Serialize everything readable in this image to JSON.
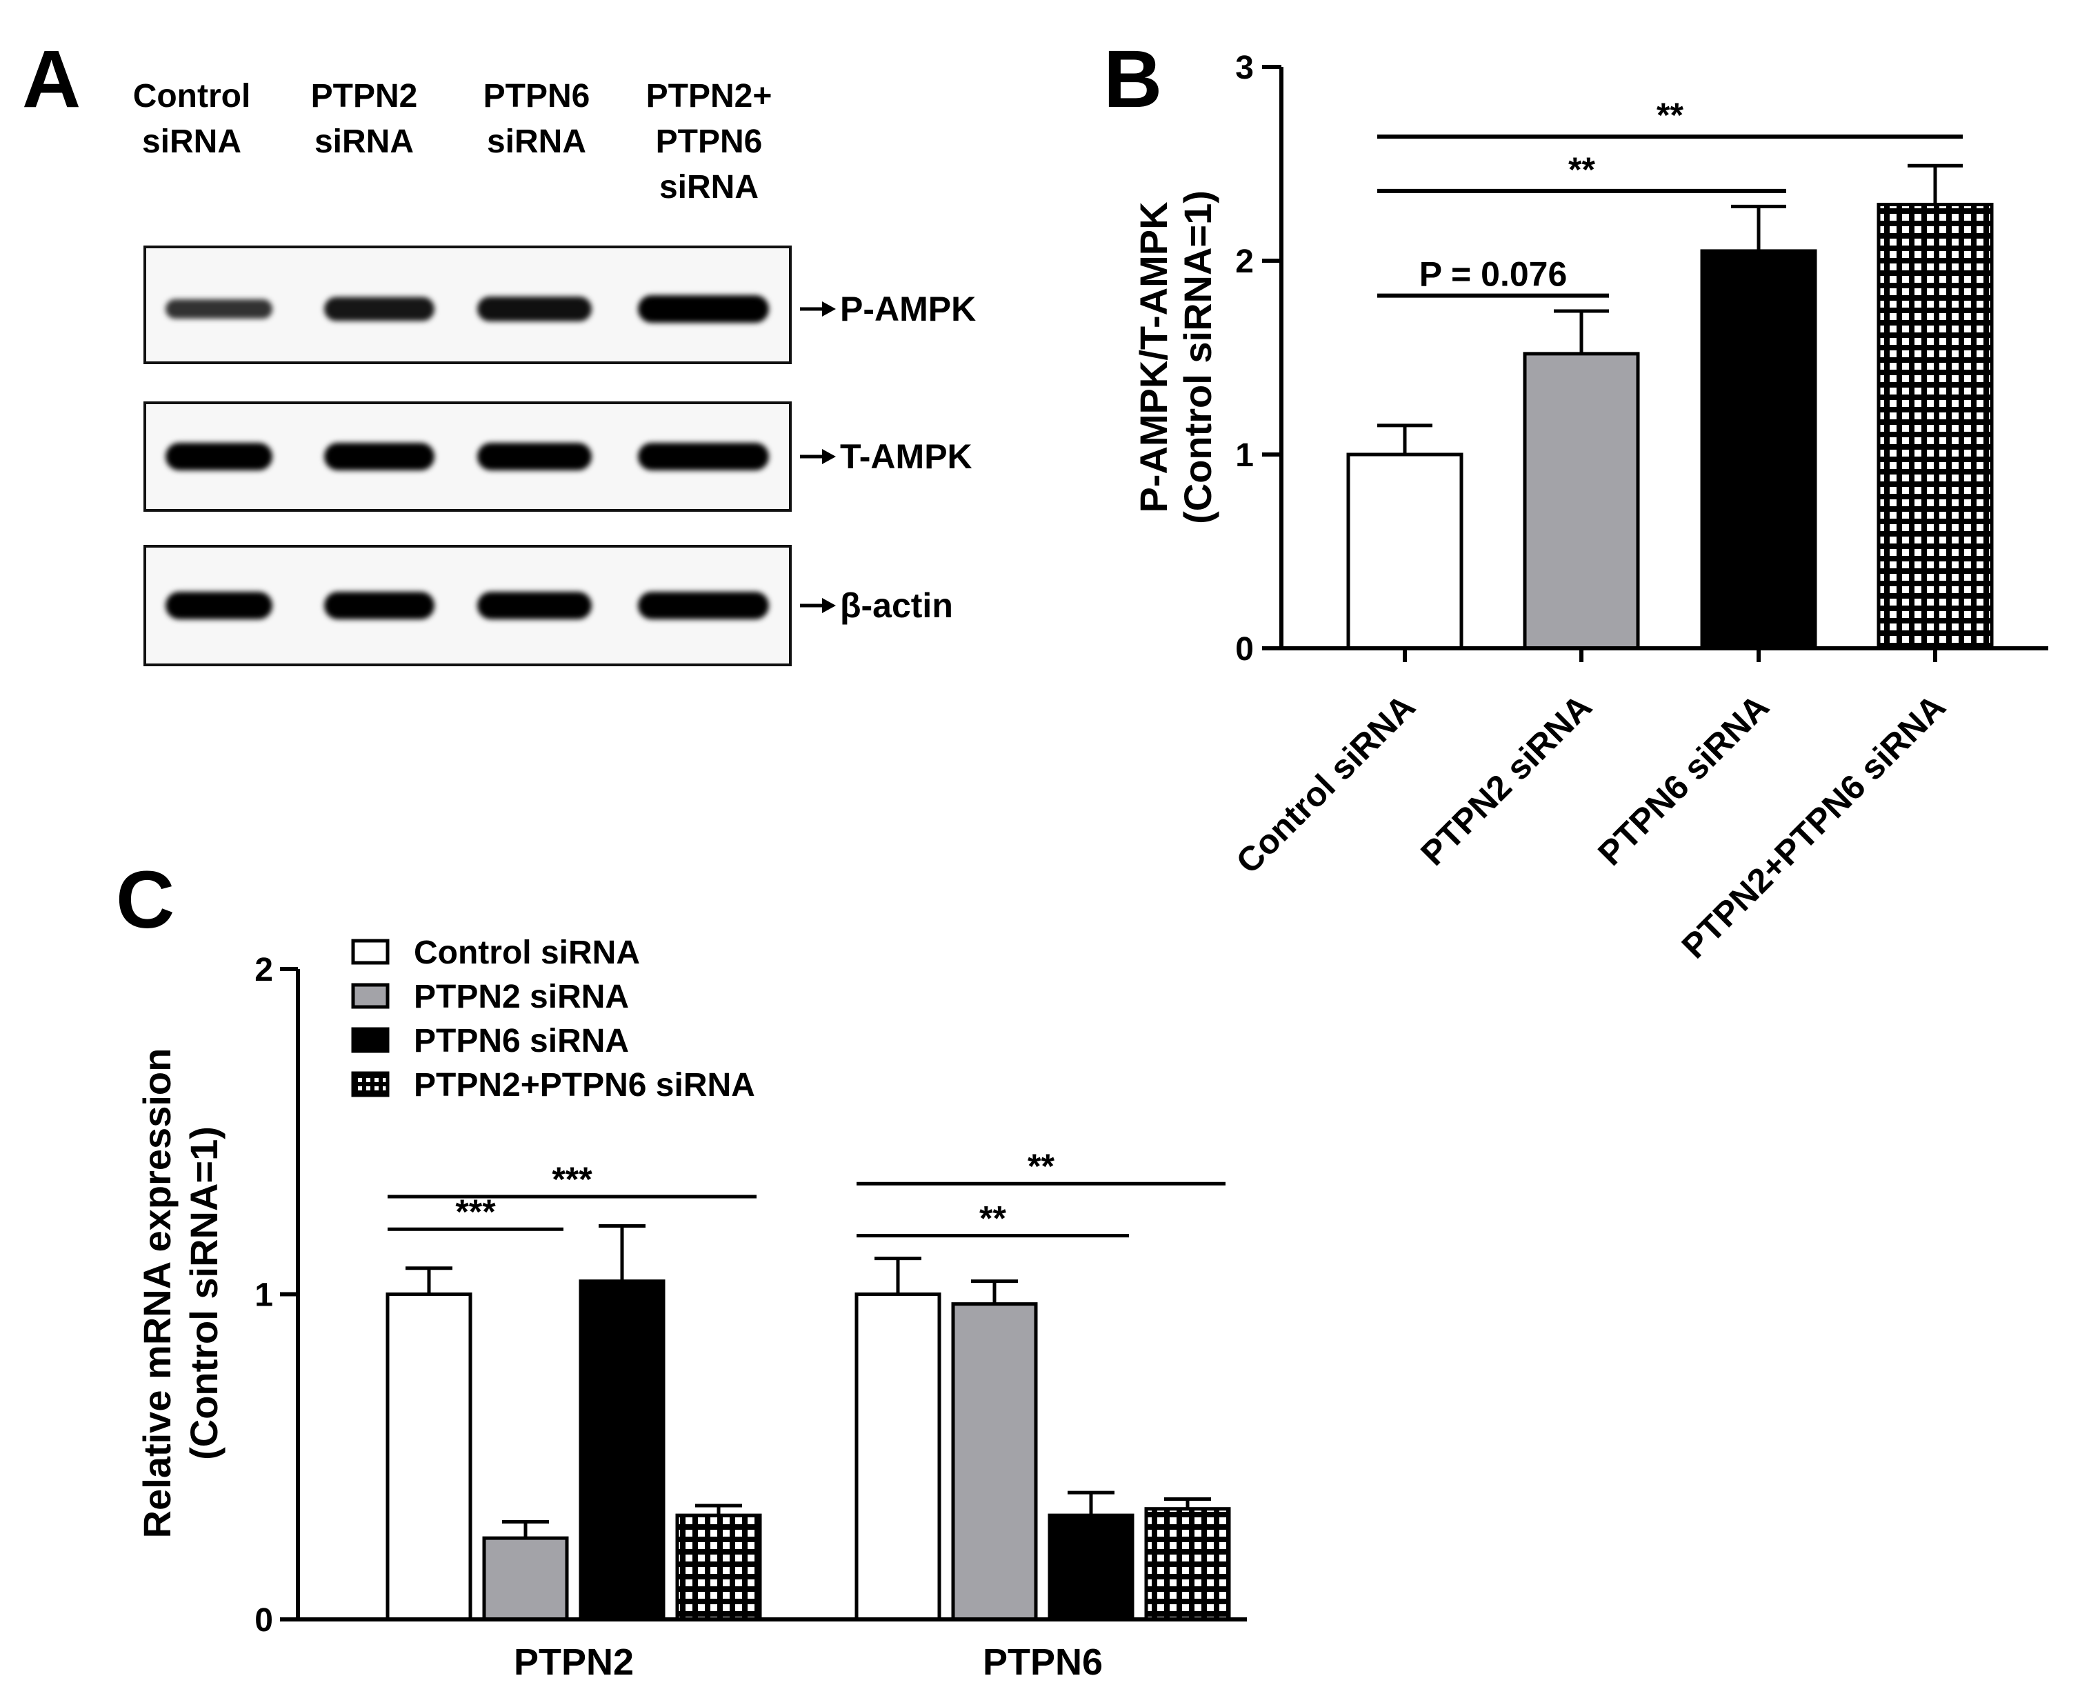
{
  "panels": {
    "A": {
      "letter": "A",
      "lanes": [
        [
          "Control",
          "siRNA"
        ],
        [
          "PTPN2",
          "siRNA"
        ],
        [
          "PTPN6",
          "siRNA"
        ],
        [
          "PTPN2+",
          "PTPN6",
          "siRNA"
        ]
      ],
      "blots": [
        {
          "label": "P-AMPK",
          "intensity": [
            0.55,
            0.8,
            0.85,
            1.0
          ]
        },
        {
          "label": "T-AMPK",
          "intensity": [
            1.0,
            1.0,
            1.0,
            1.0
          ]
        },
        {
          "label": "β-actin",
          "intensity": [
            1.0,
            1.0,
            1.0,
            1.0
          ]
        }
      ]
    },
    "B": {
      "letter": "B"
    },
    "C": {
      "letter": "C"
    }
  },
  "chart_data": [
    {
      "panel": "B",
      "type": "bar",
      "ylabel": [
        "P-AMPK/T-AMPK",
        "(Control siRNA=1)"
      ],
      "ylim": [
        0,
        3
      ],
      "yticks": [
        0,
        1,
        2,
        3
      ],
      "categories": [
        "Control siRNA",
        "PTPN2 siRNA",
        "PTPN6 siRNA",
        "PTPN2+PTPN6 siRNA"
      ],
      "values": [
        1.0,
        1.52,
        2.05,
        2.29
      ],
      "errors": [
        0.15,
        0.22,
        0.23,
        0.2
      ],
      "fills": [
        "white",
        "gray",
        "black",
        "checker"
      ],
      "significance": [
        {
          "from": 0,
          "to": 1,
          "text": "P = 0.076",
          "y": 1.82
        },
        {
          "from": 0,
          "to": 2,
          "text": "**",
          "y": 2.36
        },
        {
          "from": 0,
          "to": 3,
          "text": "**",
          "y": 2.64
        }
      ]
    },
    {
      "panel": "C",
      "type": "bar",
      "ylabel": [
        "Relative mRNA expression",
        "(Control siRNA=1)"
      ],
      "ylim": [
        0,
        2
      ],
      "yticks": [
        0,
        1,
        2
      ],
      "categories": [
        "PTPN2",
        "PTPN6"
      ],
      "series": [
        {
          "name": "Control siRNA",
          "fill": "white",
          "values": [
            1.0,
            1.0
          ],
          "errors": [
            0.08,
            0.11
          ]
        },
        {
          "name": "PTPN2 siRNA",
          "fill": "gray",
          "values": [
            0.25,
            0.97
          ],
          "errors": [
            0.05,
            0.07
          ]
        },
        {
          "name": "PTPN6 siRNA",
          "fill": "black",
          "values": [
            1.04,
            0.32
          ],
          "errors": [
            0.17,
            0.07
          ]
        },
        {
          "name": "PTPN2+PTPN6 siRNA",
          "fill": "checker",
          "values": [
            0.32,
            0.34
          ],
          "errors": [
            0.03,
            0.03
          ]
        }
      ],
      "legend": "top-left",
      "significance": [
        {
          "group": 0,
          "from": 0,
          "to": 1,
          "text": "***",
          "y": 1.2
        },
        {
          "group": 0,
          "from": 0,
          "to": 3,
          "text": "***",
          "y": 1.3
        },
        {
          "group": 1,
          "from": 0,
          "to": 2,
          "text": "**",
          "y": 1.18
        },
        {
          "group": 1,
          "from": 0,
          "to": 3,
          "text": "**",
          "y": 1.34
        }
      ]
    }
  ],
  "colors": {
    "gray": "#a3a3a8",
    "black": "#000000",
    "white": "#ffffff",
    "axis": "#000000"
  }
}
